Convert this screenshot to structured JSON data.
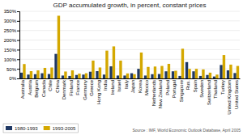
{
  "chart_data": {
    "type": "bar",
    "title": "GDP accumulated growth, in percent, constant prices",
    "categories": [
      "Australia",
      "Austria",
      "Belgium",
      "Canada",
      "Chile",
      "China",
      "Denmark",
      "Finland",
      "France",
      "Germany",
      "Greece",
      "Hong Kong",
      "India",
      "Ireland",
      "Israel",
      "Italy",
      "Japan",
      "Korea",
      "Mexico",
      "Netherlands",
      "New Zealand",
      "Poland",
      "Portugal",
      "Singapore",
      "Rus.",
      "Spain",
      "Sweden",
      "Switzerland",
      "Thailand",
      "Turkey",
      "United Kingdom",
      "United States"
    ],
    "series": [
      {
        "name": "1980-1993",
        "color": "#1F3864",
        "values": [
          30,
          20,
          22,
          27,
          23,
          128,
          15,
          13,
          18,
          20,
          35,
          38,
          20,
          63,
          15,
          15,
          27,
          50,
          15,
          22,
          23,
          37,
          37,
          13,
          85,
          37,
          13,
          18,
          10,
          70,
          42,
          28
        ]
      },
      {
        "name": "1993-2005",
        "color": "#D4A800",
        "values": [
          75,
          38,
          42,
          55,
          57,
          327,
          36,
          42,
          25,
          27,
          93,
          57,
          145,
          167,
          93,
          26,
          22,
          135,
          60,
          62,
          65,
          76,
          40,
          155,
          50,
          50,
          47,
          30,
          20,
          122,
          72,
          65
        ]
      }
    ],
    "ylim": [
      0,
      350
    ],
    "yticks": [
      {
        "value": 0,
        "label": "0%"
      },
      {
        "value": 50,
        "label": "50%"
      },
      {
        "value": 100,
        "label": "100%"
      },
      {
        "value": 150,
        "label": "150%"
      },
      {
        "value": 200,
        "label": "200%"
      },
      {
        "value": 250,
        "label": "250%"
      },
      {
        "value": 300,
        "label": "300%"
      },
      {
        "value": 350,
        "label": "350%"
      }
    ],
    "grid": true,
    "legend": "bottom",
    "annotations": [
      "Source : IMF, World Economic Outlook Database, April 2005"
    ]
  }
}
